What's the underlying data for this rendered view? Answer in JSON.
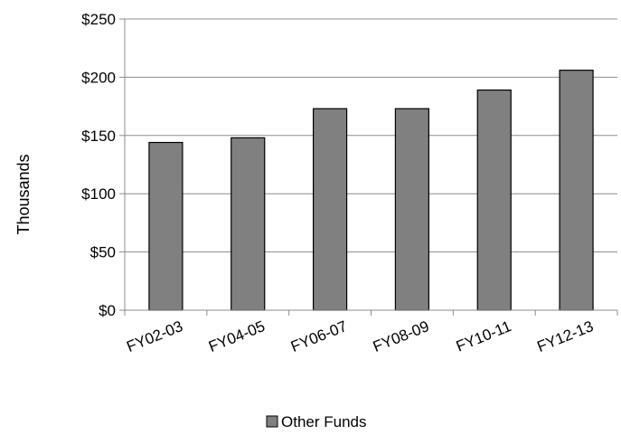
{
  "chart_data": {
    "type": "bar",
    "title": "",
    "xlabel": "",
    "ylabel": "Thousands",
    "categories": [
      "FY02-03",
      "FY04-05",
      "FY06-07",
      "FY08-09",
      "FY10-11",
      "FY12-13"
    ],
    "series": [
      {
        "name": "Other Funds",
        "values": [
          144,
          148,
          173,
          173,
          189,
          206
        ],
        "color": "#808080"
      }
    ],
    "ylim": [
      0,
      250
    ],
    "yticks": [
      0,
      50,
      100,
      150,
      200,
      250
    ],
    "ytick_labels": [
      "$0",
      "$50",
      "$100",
      "$150",
      "$200",
      "$250"
    ],
    "grid": true,
    "legend_position": "bottom"
  }
}
